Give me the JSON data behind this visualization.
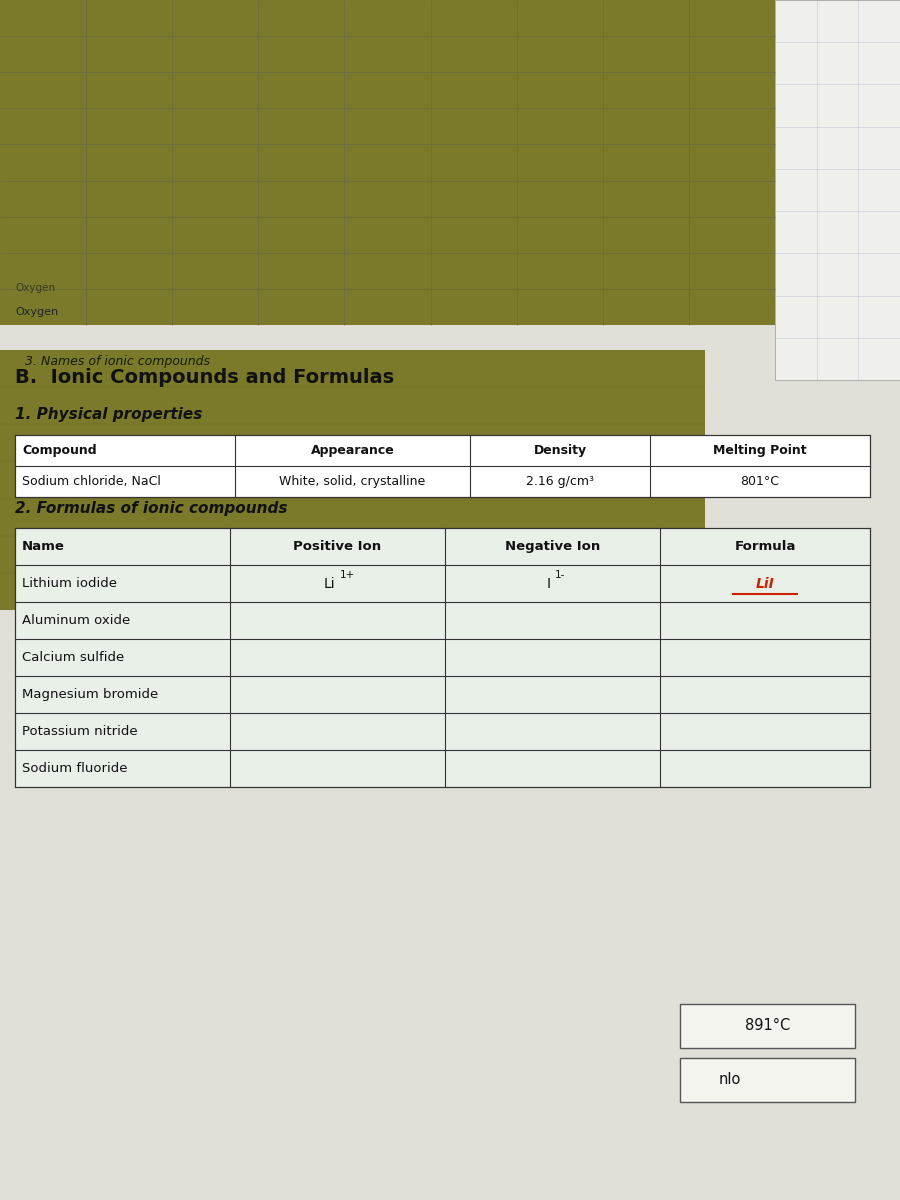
{
  "title_b": "B.  Ionic Compounds and Formulas",
  "subtitle1": "1. Physical properties",
  "subtitle2": "2. Formulas of ionic compounds",
  "subtitle3": "3. Names of ionic compounds",
  "table1_headers": [
    "Compound",
    "Appearance",
    "Density",
    "Melting Point"
  ],
  "table1_row": [
    "Sodium chloride, NaCl",
    "White, solid, crystalline",
    "2.16 g/cm³",
    "801°C"
  ],
  "table2_headers": [
    "Name",
    "Positive Ion",
    "Negative Ion",
    "Formula"
  ],
  "table2_rows": [
    [
      "Lithium iodide",
      "Li1+",
      "I1-",
      "LiI"
    ],
    [
      "Aluminum oxide",
      "",
      "",
      ""
    ],
    [
      "Calcium sulfide",
      "",
      "",
      ""
    ],
    [
      "Magnesium bromide",
      "",
      "",
      ""
    ],
    [
      "Potassium nitride",
      "",
      "",
      ""
    ],
    [
      "Sodium fluoride",
      "",
      "",
      ""
    ]
  ],
  "box_891": "891°C",
  "box_nlo": "nlo",
  "olive_color": "#7a7a2a",
  "page_bg": "#e0e0d8",
  "table_bg": "#e8f0e8",
  "header_bg": "#ffffff",
  "LiI_color": "#cc2200"
}
